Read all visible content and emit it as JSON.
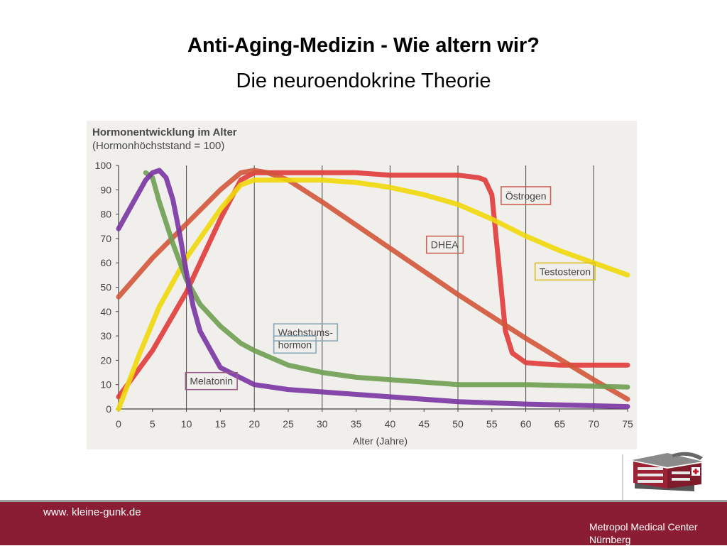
{
  "slide": {
    "title": "Anti-Aging-Medizin  - Wie altern wir?",
    "subtitle": "Die neuroendokrine Theorie"
  },
  "footer": {
    "url": "www. kleine-gunk.de",
    "org_line1": "Metropol Medical Center",
    "org_line2": "Nürnberg"
  },
  "colors": {
    "footer_bg": "#8a1d33"
  },
  "chart_data": {
    "type": "line",
    "title": "Hormonentwicklung im Alter",
    "subtitle": "(Hormonhöchststand = 100)",
    "xlabel": "Alter (Jahre)",
    "ylabel": "",
    "xlim": [
      0,
      75
    ],
    "ylim": [
      0,
      100
    ],
    "xticks": [
      0,
      5,
      10,
      15,
      20,
      25,
      30,
      35,
      40,
      45,
      50,
      55,
      60,
      65,
      70,
      75
    ],
    "yticks": [
      0,
      10,
      20,
      30,
      40,
      50,
      60,
      70,
      80,
      90,
      100
    ],
    "vgrid": [
      10,
      20,
      30,
      40,
      50,
      60,
      70
    ],
    "series": [
      {
        "name": "Östrogen",
        "color": "#e03a3a",
        "x": [
          0,
          5,
          10,
          15,
          18,
          20,
          25,
          30,
          35,
          40,
          45,
          50,
          53,
          54,
          55,
          56,
          57,
          58,
          60,
          65,
          70,
          75
        ],
        "y": [
          5,
          24,
          48,
          78,
          94,
          97,
          97,
          97,
          97,
          96,
          96,
          96,
          95,
          94,
          88,
          60,
          32,
          23,
          19,
          18,
          18,
          18
        ]
      },
      {
        "name": "DHEA",
        "color": "#d2553a",
        "x": [
          0,
          5,
          10,
          15,
          18,
          20,
          22,
          25,
          30,
          40,
          50,
          60,
          70,
          75
        ],
        "y": [
          46,
          62,
          76,
          90,
          97,
          98,
          97,
          94,
          85,
          66,
          47,
          29,
          12,
          4
        ]
      },
      {
        "name": "Testosteron",
        "color": "#f0d80a",
        "x": [
          0,
          3,
          6,
          10,
          15,
          18,
          20,
          22,
          25,
          30,
          35,
          40,
          45,
          50,
          55,
          60,
          65,
          70,
          75
        ],
        "y": [
          0,
          22,
          42,
          62,
          82,
          92,
          94,
          94,
          94,
          94,
          93,
          91,
          88,
          84,
          78,
          71,
          65,
          60,
          55
        ]
      },
      {
        "name": "Wachstumshormon",
        "color": "#6e9e52",
        "x": [
          4,
          5,
          6,
          8,
          10,
          12,
          15,
          18,
          20,
          25,
          30,
          35,
          40,
          50,
          60,
          75
        ],
        "y": [
          97,
          95,
          85,
          68,
          53,
          43,
          34,
          27,
          24,
          18,
          15,
          13,
          12,
          10,
          10,
          9
        ]
      },
      {
        "name": "Melatonin",
        "color": "#7a34a3",
        "x": [
          0,
          2,
          4,
          5,
          6,
          7,
          8,
          9,
          10,
          11,
          12,
          15,
          20,
          25,
          30,
          40,
          50,
          60,
          75
        ],
        "y": [
          74,
          84,
          94,
          97,
          98,
          95,
          86,
          72,
          56,
          42,
          32,
          17,
          10,
          8,
          7,
          5,
          3,
          2,
          1
        ]
      }
    ],
    "labels": [
      {
        "text": "Östrogen",
        "x": 57,
        "y": 86,
        "color": "#d0605a"
      },
      {
        "text": "DHEA",
        "x": 46,
        "y": 66,
        "color": "#d0605a"
      },
      {
        "text": "Testosteron",
        "x": 62,
        "y": 55,
        "color": "#d8c020"
      },
      {
        "text": "Wachstums-",
        "x": 23.5,
        "y": 30,
        "color": "#8aa9b6"
      },
      {
        "text": "hormon",
        "x": 23.5,
        "y": 25,
        "color": "#8aa9b6"
      },
      {
        "text": "Melatonin",
        "x": 10.5,
        "y": 10,
        "color": "#9a5a8a"
      }
    ]
  }
}
